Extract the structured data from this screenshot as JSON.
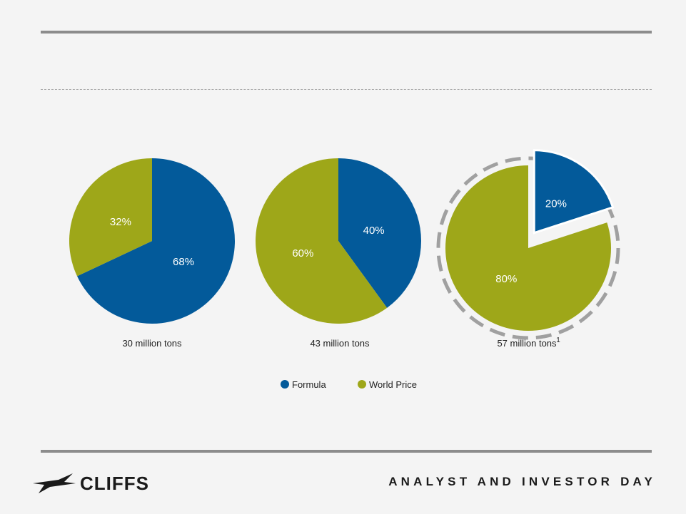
{
  "chart_data": [
    {
      "type": "pie",
      "caption": "30 million tons",
      "slices": [
        {
          "name": "Formula",
          "value": 68,
          "label": "68%"
        },
        {
          "name": "World Price",
          "value": 32,
          "label": "32%"
        }
      ]
    },
    {
      "type": "pie",
      "caption": "43 million tons",
      "slices": [
        {
          "name": "Formula",
          "value": 40,
          "label": "40%"
        },
        {
          "name": "World Price",
          "value": 60,
          "label": "60%"
        }
      ]
    },
    {
      "type": "pie",
      "caption": "57 million tons",
      "caption_sup": "1",
      "exploded": "Formula",
      "dashed_outline": true,
      "slices": [
        {
          "name": "Formula",
          "value": 20,
          "label": "20%"
        },
        {
          "name": "World Price",
          "value": 80,
          "label": "80%"
        }
      ]
    }
  ],
  "legend": {
    "position": "bottom-center",
    "items": [
      {
        "name": "Formula",
        "color": "#035a9a"
      },
      {
        "name": "World Price",
        "color": "#9ea719"
      }
    ]
  },
  "colors": {
    "Formula": "#035a9a",
    "World Price": "#9ea719"
  },
  "footer": {
    "logo_text": "CLIFFS",
    "title": "ANALYST AND INVESTOR DAY"
  }
}
